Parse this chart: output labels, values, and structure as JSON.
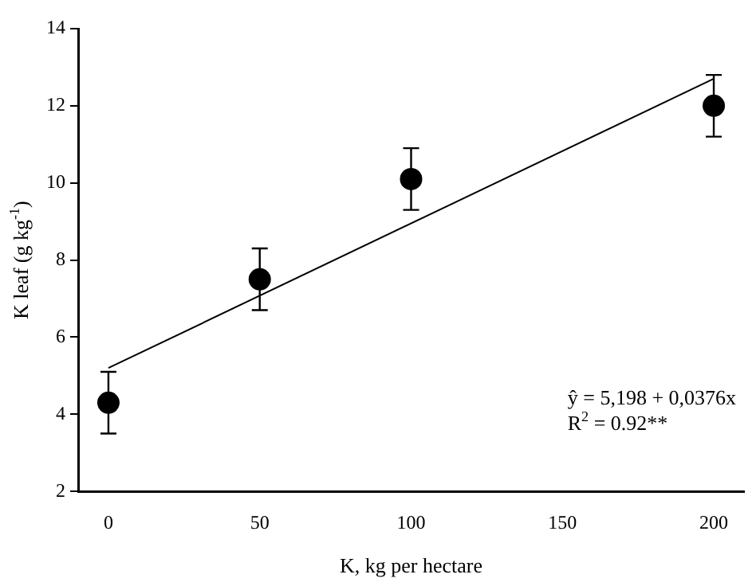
{
  "chart_data": {
    "type": "scatter",
    "xlabel": "K, kg per hectare",
    "ylabel": "K leaf (g kg$^{-1}$)",
    "x": [
      0,
      50,
      100,
      200
    ],
    "series": [
      {
        "type": "scatter",
        "color": "#000000",
        "marker": "circle",
        "values": [
          4.3,
          7.5,
          10.1,
          12.0
        ],
        "errors": [
          0.8,
          0.8,
          0.8,
          0.8
        ]
      },
      {
        "type": "line",
        "color": "#000000",
        "x": [
          0,
          200
        ],
        "values": [
          5.2,
          12.7
        ]
      }
    ],
    "xlim": [
      -10,
      210
    ],
    "xticks": [
      0,
      50,
      100,
      150,
      200
    ],
    "ylim": [
      2,
      14
    ],
    "yticks": [
      2,
      4,
      6,
      8,
      10,
      12,
      14
    ],
    "annotations": [
      "ŷ = 5,198 + 0,0376x",
      "R$^{2}$ = 0.92**"
    ],
    "grid": false,
    "legend": false
  }
}
